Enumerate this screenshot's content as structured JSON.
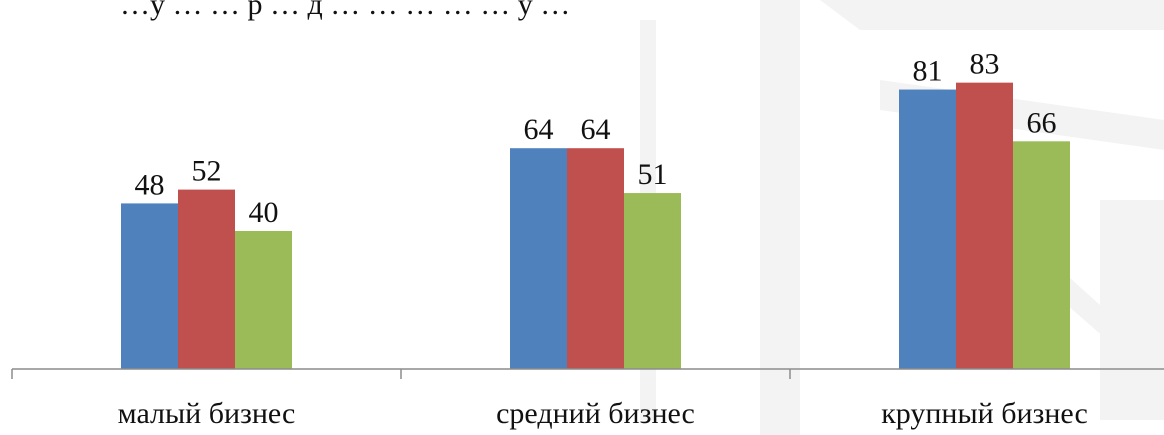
{
  "chart_data": {
    "type": "bar",
    "title": "",
    "xlabel": "",
    "ylabel": "",
    "ylim": [
      0,
      100
    ],
    "grid": false,
    "legend": "none",
    "categories": [
      "малый бизнес",
      "средний бизнес",
      "крупный бизнес"
    ],
    "series": [
      {
        "color": "#4f81bd",
        "values": [
          48,
          64,
          81
        ]
      },
      {
        "color": "#c0504d",
        "values": [
          52,
          64,
          83
        ]
      },
      {
        "color": "#9bbb59",
        "values": [
          40,
          51,
          66
        ]
      }
    ],
    "top_text_partial": "…у … … р … д … … … … … у …"
  }
}
